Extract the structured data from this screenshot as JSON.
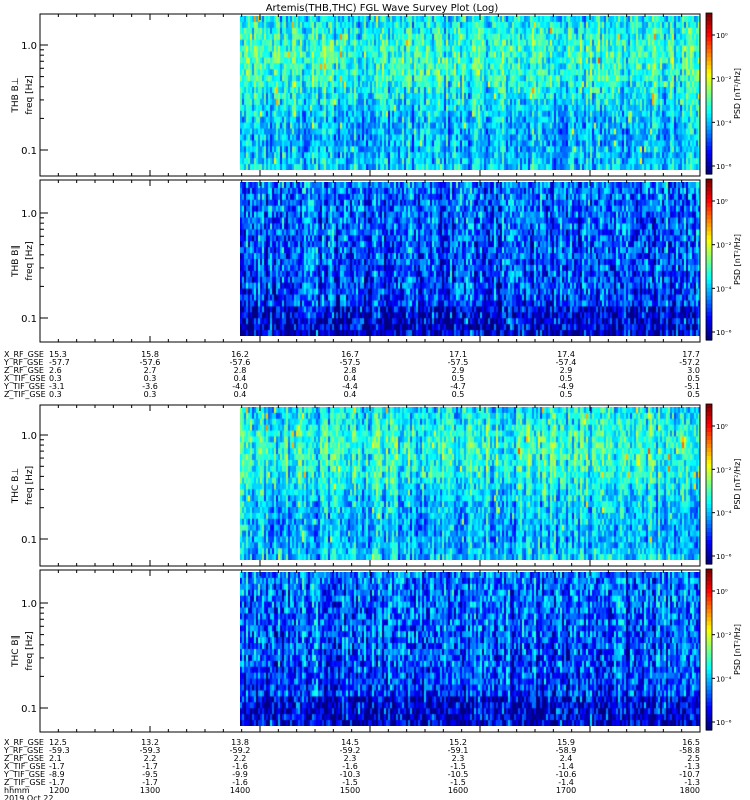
{
  "title": "Artemis(THB,THC) FGL Wave Survey Plot (Log)",
  "panels": [
    {
      "ylabel_probe": "THB B⊥",
      "ylabel": "freq [Hz]",
      "cbar_label": "PSD [nT²/Hz]"
    },
    {
      "ylabel_probe": "THB B∥",
      "ylabel": "freq [Hz]",
      "cbar_label": "PSD [nT²/Hz]"
    },
    {
      "ylabel_probe": "THC B⊥",
      "ylabel": "freq [Hz]",
      "cbar_label": "PSD [nT²/Hz]"
    },
    {
      "ylabel_probe": "THC B∥",
      "ylabel": "freq [Hz]",
      "cbar_label": "PSD [nT²/Hz]"
    }
  ],
  "y_ticks": [
    "1.0",
    "0.1"
  ],
  "cbar_ticks": [
    [
      "10⁰",
      "10⁻²",
      "10⁻⁴",
      "10⁻⁶"
    ],
    [
      "10⁰",
      "10⁻²",
      "10⁻⁴",
      "10⁻⁶"
    ],
    [
      "10⁰",
      "10⁻²",
      "10⁻⁴",
      "10⁻⁶"
    ],
    [
      "10⁰",
      "10⁻²",
      "10⁻⁴",
      "10⁻⁶"
    ]
  ],
  "table_thb": {
    "labels": [
      "X_RF_GSE",
      "Y_RF_GSE",
      "Z_RF_GSE",
      "X_TIF_GSE",
      "Y_TIF_GSE",
      "Z_TIF_GSE"
    ],
    "columns": [
      [
        "15.3",
        "-57.7",
        "2.6",
        "0.3",
        "-3.1",
        "0.3"
      ],
      [
        "15.8",
        "-57.6",
        "2.7",
        "0.3",
        "-3.6",
        "0.3"
      ],
      [
        "16.2",
        "-57.6",
        "2.8",
        "0.4",
        "-4.0",
        "0.4"
      ],
      [
        "16.7",
        "-57.5",
        "2.8",
        "0.4",
        "-4.4",
        "0.4"
      ],
      [
        "17.1",
        "-57.5",
        "2.9",
        "0.5",
        "-4.7",
        "0.5"
      ],
      [
        "17.4",
        "-57.4",
        "2.9",
        "0.5",
        "-4.9",
        "0.5"
      ],
      [
        "17.7",
        "-57.2",
        "3.0",
        "0.5",
        "-5.1",
        "0.5"
      ]
    ]
  },
  "table_thc": {
    "labels": [
      "X_RF_GSE",
      "Y_RF_GSE",
      "Z_RF_GSE",
      "X_TIF_GSE",
      "Y_TIF_GSE",
      "Z_TIF_GSE",
      "hhmm",
      "2019 Oct 22"
    ],
    "columns": [
      [
        "12.5",
        "-59.3",
        "2.1",
        "-1.7",
        "-8.9",
        "-1.7",
        "1200"
      ],
      [
        "13.2",
        "-59.3",
        "2.2",
        "-1.7",
        "-9.5",
        "-1.7",
        "1300"
      ],
      [
        "13.8",
        "-59.2",
        "2.2",
        "-1.6",
        "-9.9",
        "-1.6",
        "1400"
      ],
      [
        "14.5",
        "-59.2",
        "2.3",
        "-1.6",
        "-10.3",
        "-1.5",
        "1500"
      ],
      [
        "15.2",
        "-59.1",
        "2.3",
        "-1.5",
        "-10.5",
        "-1.5",
        "1600"
      ],
      [
        "15.9",
        "-58.9",
        "2.4",
        "-1.4",
        "-10.6",
        "-1.4",
        "1700"
      ],
      [
        "16.5",
        "-58.8",
        "2.5",
        "-1.3",
        "-10.7",
        "-1.3",
        "1800"
      ]
    ]
  },
  "chart_data": [
    {
      "type": "heatmap",
      "title": "Artemis(THB,THC) FGL Wave Survey Plot (Log)",
      "ylabel": "THB B⊥ freq [Hz]",
      "y_scale": "log",
      "y_ticks": [
        0.1,
        1.0
      ],
      "x_ticks": [
        "1200",
        "1300",
        "1400",
        "1500",
        "1600",
        "1700",
        "1800"
      ],
      "data_start": "1315",
      "colorbar": {
        "label": "PSD [nT²/Hz]",
        "scale": "log",
        "ticks": [
          1,
          0.01,
          0.0001,
          1e-06
        ]
      }
    },
    {
      "type": "heatmap",
      "ylabel": "THB B∥ freq [Hz]",
      "y_scale": "log",
      "y_ticks": [
        0.1,
        1.0
      ],
      "x_ticks": [
        "1200",
        "1300",
        "1400",
        "1500",
        "1600",
        "1700",
        "1800"
      ],
      "data_start": "1315",
      "colorbar": {
        "label": "PSD [nT²/Hz]",
        "scale": "log",
        "ticks": [
          1,
          0.01,
          0.0001,
          1e-06
        ]
      }
    },
    {
      "type": "heatmap",
      "ylabel": "THC B⊥ freq [Hz]",
      "y_scale": "log",
      "y_ticks": [
        0.1,
        1.0
      ],
      "x_ticks": [
        "1200",
        "1300",
        "1400",
        "1500",
        "1600",
        "1700",
        "1800"
      ],
      "data_start": "1315",
      "colorbar": {
        "label": "PSD [nT²/Hz]",
        "scale": "log",
        "ticks": [
          1,
          0.01,
          0.0001,
          1e-06
        ]
      }
    },
    {
      "type": "heatmap",
      "ylabel": "THC B∥ freq [Hz]",
      "y_scale": "log",
      "y_ticks": [
        0.1,
        1.0
      ],
      "x_ticks": [
        "1200",
        "1300",
        "1400",
        "1500",
        "1600",
        "1700",
        "1800"
      ],
      "data_start": "1315",
      "colorbar": {
        "label": "PSD [nT²/Hz]",
        "scale": "log",
        "ticks": [
          1,
          0.01,
          0.0001,
          1e-06
        ]
      }
    }
  ]
}
